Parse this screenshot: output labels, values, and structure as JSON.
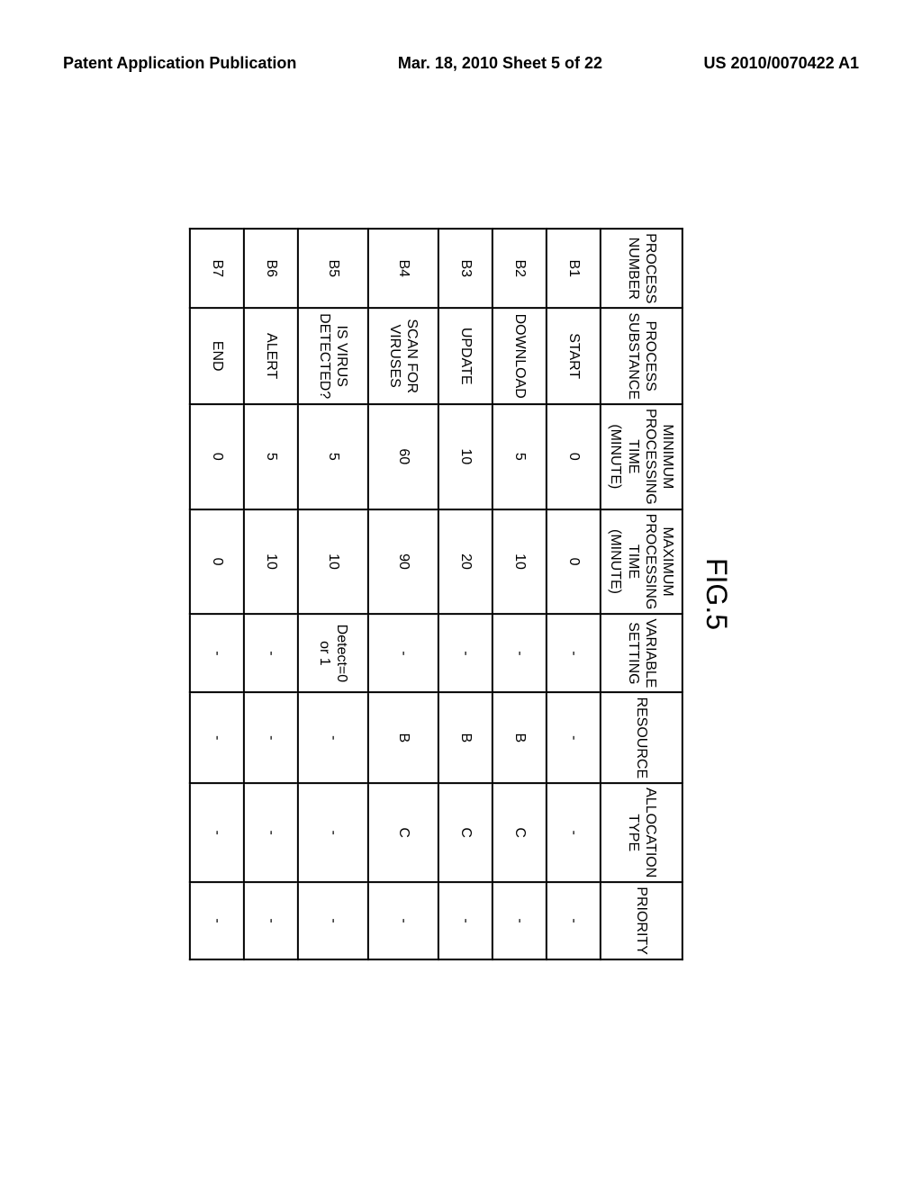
{
  "header": {
    "left": "Patent Application Publication",
    "center": "Mar. 18, 2010  Sheet 5 of 22",
    "right": "US 2010/0070422 A1"
  },
  "figure": {
    "label": "FIG.5",
    "columns": [
      "PROCESS\nNUMBER",
      "PROCESS\nSUBSTANCE",
      "MINIMUM\nPROCESSING\nTIME (MINUTE)",
      "MAXIMUM\nPROCESSING\nTIME (MINUTE)",
      "VARIABLE\nSETTING",
      "RESOURCE",
      "ALLOCATION\nTYPE",
      "PRIORITY"
    ],
    "rows": [
      {
        "num": "B1",
        "sub": "START",
        "min": "0",
        "max": "0",
        "var": "-",
        "res": "-",
        "alloc": "-",
        "pri": "-",
        "tall": false
      },
      {
        "num": "B2",
        "sub": "DOWNLOAD",
        "min": "5",
        "max": "10",
        "var": "-",
        "res": "B",
        "alloc": "C",
        "pri": "-",
        "tall": false
      },
      {
        "num": "B3",
        "sub": "UPDATE",
        "min": "10",
        "max": "20",
        "var": "-",
        "res": "B",
        "alloc": "C",
        "pri": "-",
        "tall": false
      },
      {
        "num": "B4",
        "sub": "SCAN FOR\nVIRUSES",
        "min": "60",
        "max": "90",
        "var": "-",
        "res": "B",
        "alloc": "C",
        "pri": "-",
        "tall": true
      },
      {
        "num": "B5",
        "sub": "IS VIRUS\nDETECTED?",
        "min": "5",
        "max": "10",
        "var": "Detect=0\nor 1",
        "res": "-",
        "alloc": "-",
        "pri": "-",
        "tall": true
      },
      {
        "num": "B6",
        "sub": "ALERT",
        "min": "5",
        "max": "10",
        "var": "-",
        "res": "-",
        "alloc": "-",
        "pri": "-",
        "tall": false
      },
      {
        "num": "B7",
        "sub": "END",
        "min": "0",
        "max": "0",
        "var": "-",
        "res": "-",
        "alloc": "-",
        "pri": "-",
        "tall": false
      }
    ]
  }
}
